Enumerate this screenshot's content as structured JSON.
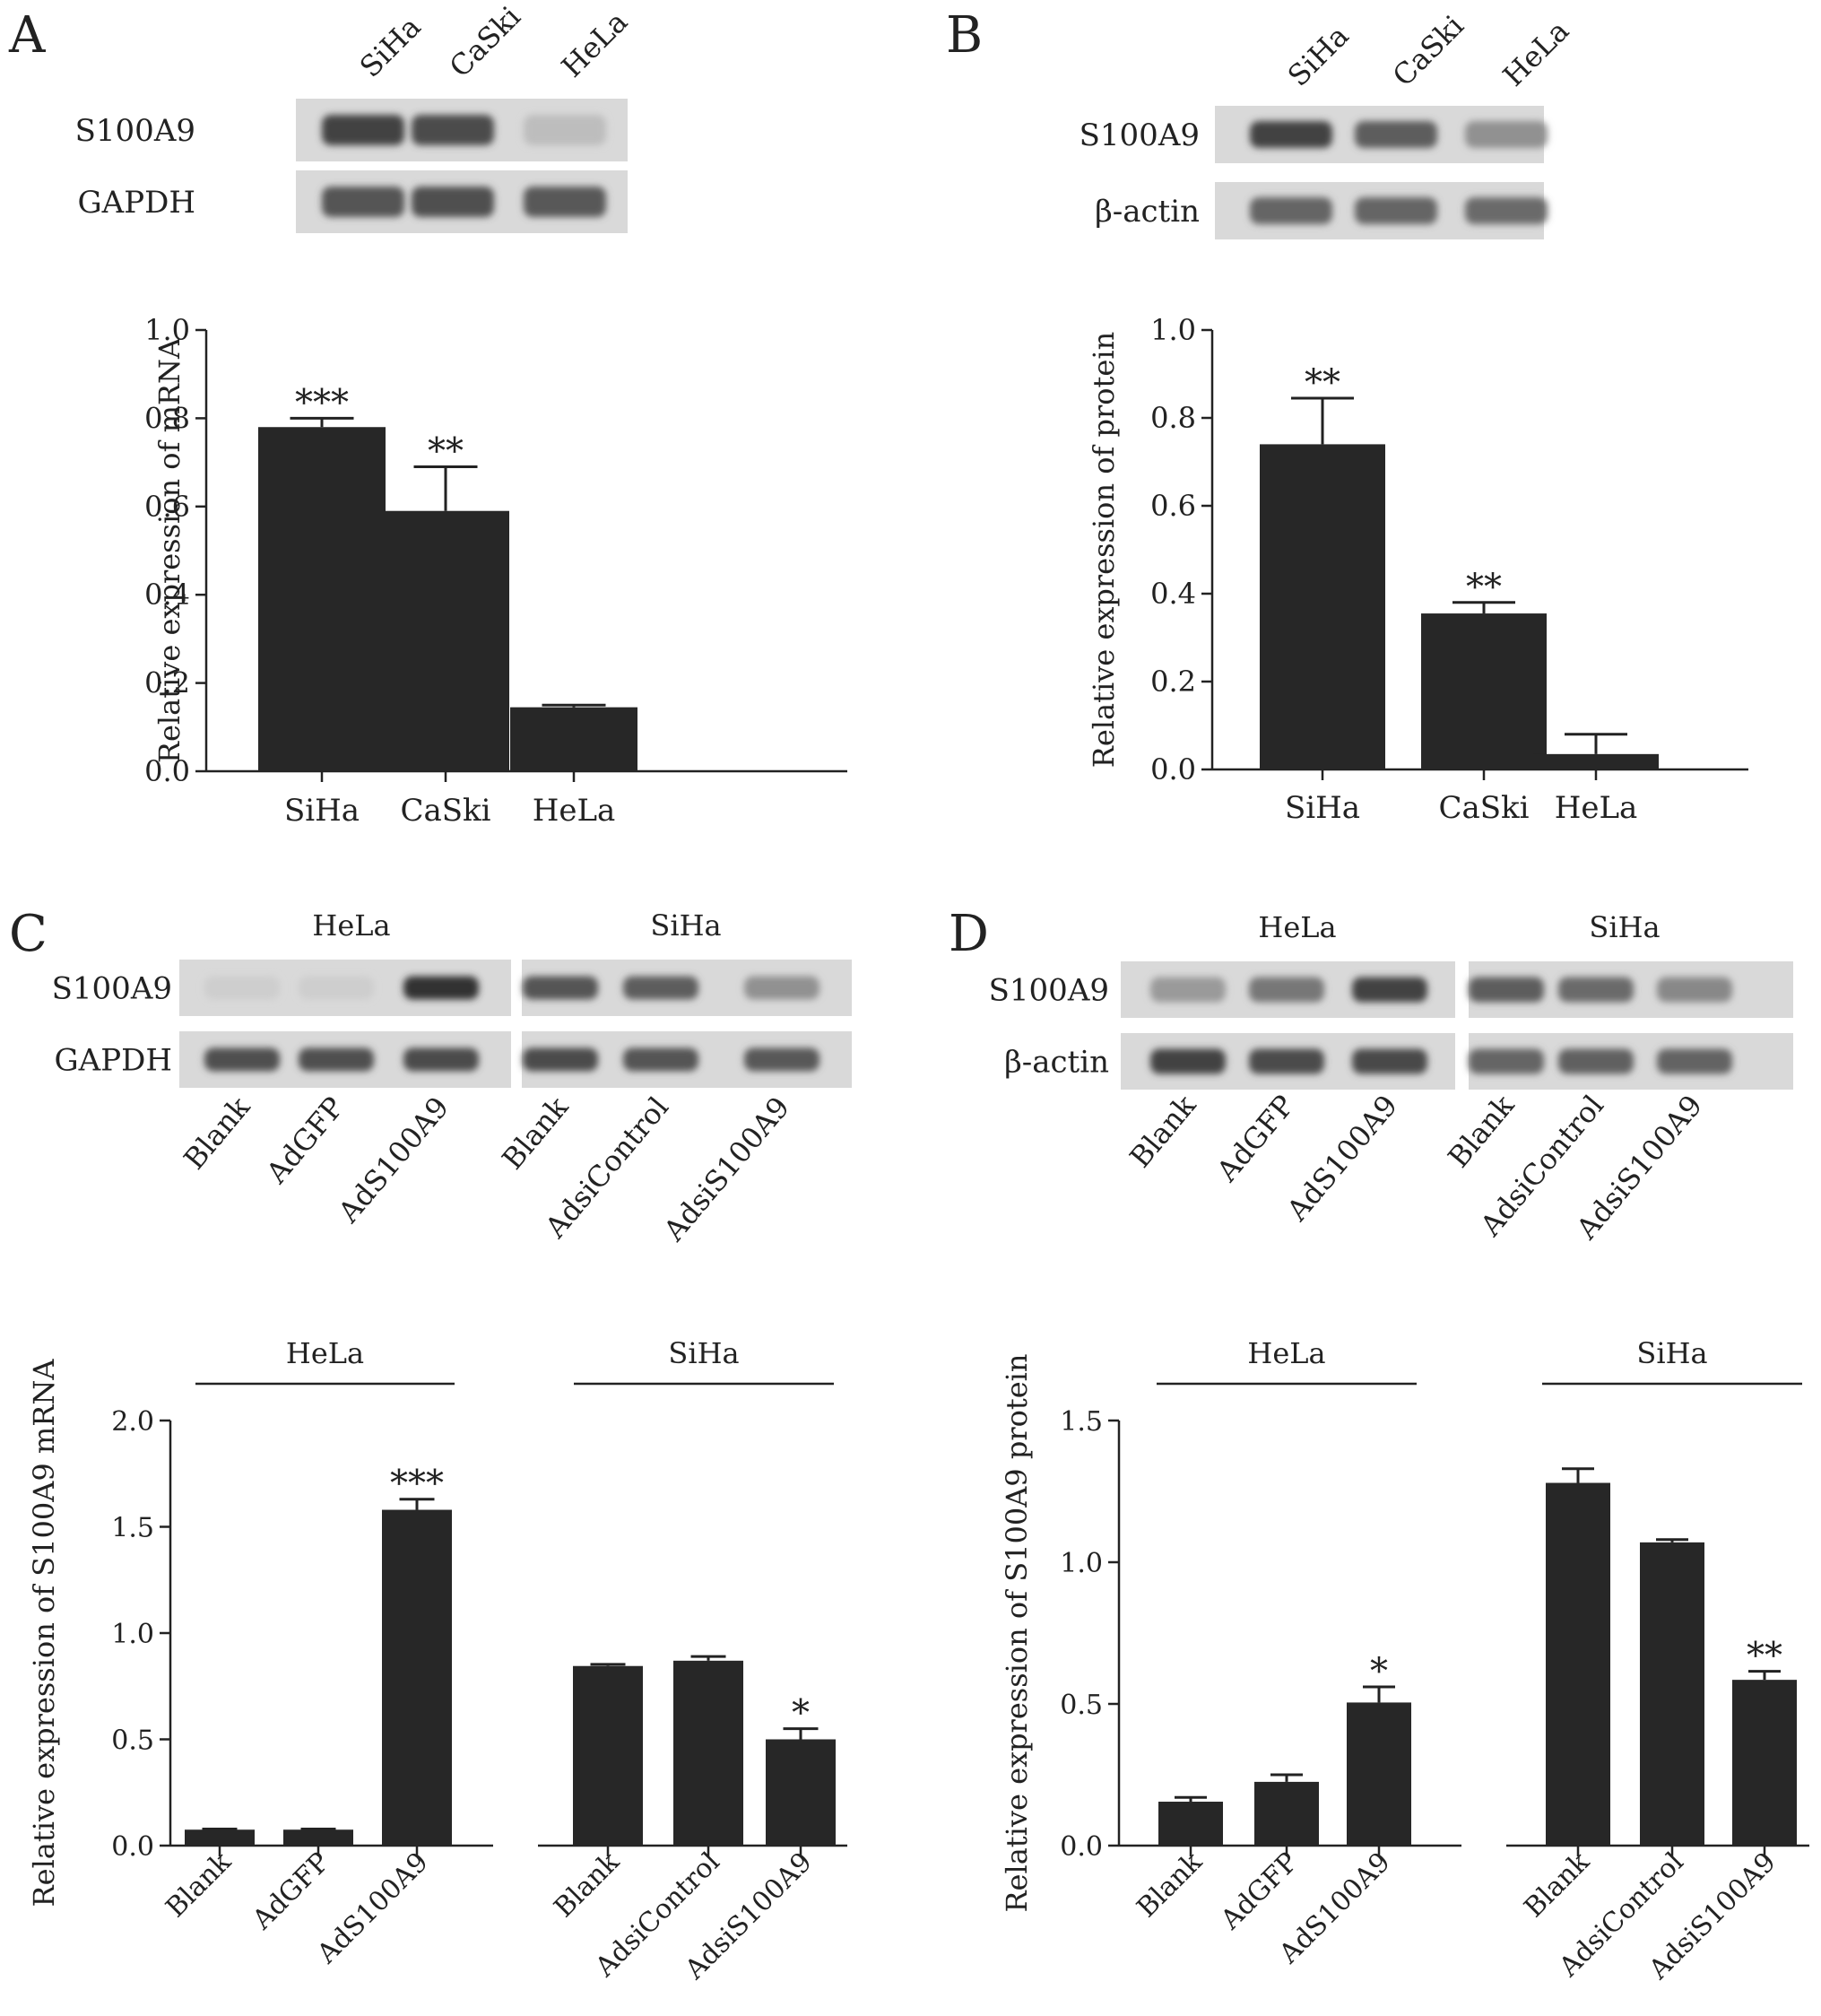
{
  "panels": [
    {
      "letter": "A",
      "blot": {
        "group_labels": [],
        "lane_labels": [
          "SiHa",
          "CaSki",
          "HeLa"
        ],
        "rows": [
          {
            "label": "S100A9",
            "intensity": [
              0.85,
              0.8,
              0.15
            ]
          },
          {
            "label": "GAPDH",
            "intensity": [
              0.75,
              0.78,
              0.72
            ]
          }
        ]
      },
      "chart_data": {
        "type": "bar",
        "categories": [
          "SiHa",
          "CaSki",
          "HeLa"
        ],
        "values": [
          0.78,
          0.59,
          0.145
        ],
        "errors": [
          0.02,
          0.1,
          0.005
        ],
        "significance": [
          "***",
          "**",
          ""
        ],
        "ylabel": "Relative expression of mRNA",
        "ylim": [
          0,
          1.0
        ],
        "yticks": [
          "0.0",
          "0.2",
          "0.4",
          "0.6",
          "0.8",
          "1.0"
        ],
        "group_labels": []
      }
    },
    {
      "letter": "B",
      "blot": {
        "group_labels": [],
        "lane_labels": [
          "SiHa",
          "CaSki",
          "HeLa"
        ],
        "rows": [
          {
            "label": "S100A9",
            "intensity": [
              0.85,
              0.7,
              0.4
            ]
          },
          {
            "label": "β-actin",
            "intensity": [
              0.65,
              0.65,
              0.62
            ]
          }
        ]
      },
      "chart_data": {
        "type": "bar",
        "categories": [
          "SiHa",
          "CaSki",
          "HeLa"
        ],
        "values": [
          0.74,
          0.355,
          0.035
        ],
        "errors": [
          0.105,
          0.025,
          0.045
        ],
        "significance": [
          "**",
          "**",
          ""
        ],
        "ylabel": "Relative expression of protein",
        "ylim": [
          0,
          1.0
        ],
        "yticks": [
          "0.0",
          "0.2",
          "0.4",
          "0.6",
          "0.8",
          "1.0"
        ],
        "group_labels": []
      }
    },
    {
      "letter": "C",
      "blot": {
        "group_labels": [
          "HeLa",
          "SiHa"
        ],
        "lane_labels": [
          "Blank",
          "AdGFP",
          "AdS100A9",
          "Blank",
          "AdsiControl",
          "AdsiS100A9"
        ],
        "rows": [
          {
            "label": "S100A9",
            "intensity": [
              0.05,
              0.05,
              0.95,
              0.75,
              0.7,
              0.4
            ]
          },
          {
            "label": "GAPDH",
            "intensity": [
              0.78,
              0.78,
              0.8,
              0.8,
              0.75,
              0.72
            ]
          }
        ]
      },
      "chart_data": {
        "type": "bar",
        "categories": [
          "Blank",
          "AdGFP",
          "AdS100A9",
          "Blank",
          "AdsiControl",
          "AdsiS100A9"
        ],
        "values": [
          0.075,
          0.075,
          1.58,
          0.845,
          0.87,
          0.5
        ],
        "errors": [
          0.003,
          0.003,
          0.05,
          0.008,
          0.02,
          0.05
        ],
        "significance": [
          "",
          "",
          "***",
          "",
          "",
          "*"
        ],
        "ylabel": "Relative expression of S100A9 mRNA",
        "ylim": [
          0,
          2.0
        ],
        "yticks": [
          "0.0",
          "0.5",
          "1.0",
          "1.5",
          "2.0"
        ],
        "group_labels": [
          "HeLa",
          "SiHa"
        ]
      }
    },
    {
      "letter": "D",
      "blot": {
        "group_labels": [
          "HeLa",
          "SiHa"
        ],
        "lane_labels": [
          "Blank",
          "AdGFP",
          "AdS100A9",
          "Blank",
          "AdsiControl",
          "AdsiS100A9"
        ],
        "rows": [
          {
            "label": "S100A9",
            "intensity": [
              0.35,
              0.55,
              0.85,
              0.7,
              0.62,
              0.45
            ]
          },
          {
            "label": "β-actin",
            "intensity": [
              0.85,
              0.8,
              0.82,
              0.65,
              0.68,
              0.66
            ]
          }
        ]
      },
      "chart_data": {
        "type": "bar",
        "categories": [
          "Blank",
          "AdGFP",
          "AdS100A9",
          "Blank",
          "AdsiControl",
          "AdsiS100A9"
        ],
        "values": [
          0.155,
          0.225,
          0.505,
          1.28,
          1.07,
          0.585
        ],
        "errors": [
          0.015,
          0.025,
          0.055,
          0.05,
          0.01,
          0.03
        ],
        "significance": [
          "",
          "",
          "*",
          "",
          "",
          "**"
        ],
        "ylabel": "Relative expression of S100A9 protein",
        "ylim": [
          0,
          1.5
        ],
        "yticks": [
          "0.0",
          "0.5",
          "1.0",
          "1.5"
        ],
        "group_labels": [
          "HeLa",
          "SiHa"
        ]
      }
    }
  ]
}
